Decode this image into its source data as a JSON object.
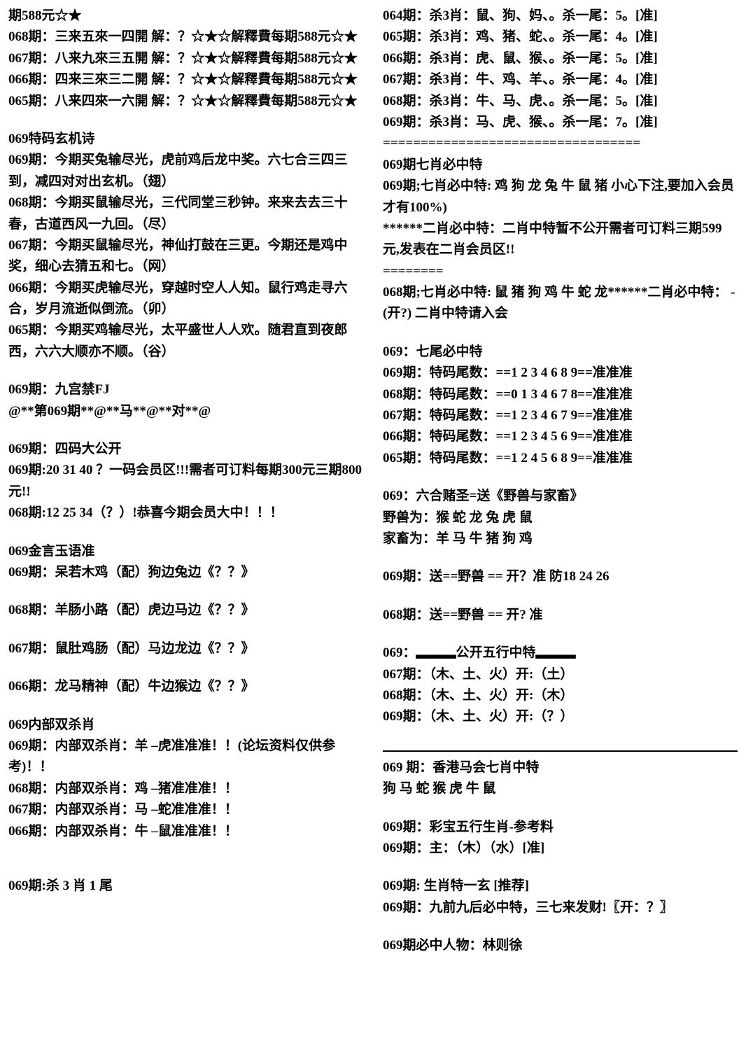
{
  "left": {
    "opening_lines": [
      "期588元☆★",
      "068期：三来五來一四開 解：？☆★☆解釋費每期588元☆★",
      "067期：八来九來三五開 解：？☆★☆解釋費每期588元☆★",
      "066期：四来三來三二開 解：？☆★☆解釋費每期588元☆★",
      "065期：八来四來一六開 解：？☆★☆解釋費每期588元☆★"
    ],
    "xuanji_title": "069特码玄机诗",
    "xuanji_lines": [
      "069期：今期买兔输尽光，虎前鸡后龙中奖。六七合三四三到，减四对对出玄机。（翅）",
      "068期：今期买鼠输尽光，三代同堂三秒钟。来来去去三十春，古道西风一九回。（尽）",
      "067期：今期买鼠输尽光，神仙打鼓在三更。今期还是鸡中奖，细心去猜五和七。（网）",
      "066期：今期买虎输尽光，穿越时空人人知。鼠行鸡走寻六合，岁月流逝似倒流。（卯）",
      "065期：今期买鸡输尽光，太平盛世人人欢。随君直到夜郎西，六六大顺亦不顺。（谷）"
    ],
    "jiugong_title": "069期：九宫禁FJ",
    "jiugong_line": "@**第069期**@**马**@**对**@",
    "sima_title": "069期：四码大公开",
    "sima_lines": [
      "069期:20 31 40 ？一码会员区!!!需者可订料每期300元三期800元!!",
      "068期:12 25 34（？）!恭喜今期会员大中！！！"
    ],
    "jinyan_title": "069金言玉语准",
    "jinyan_lines": [
      "069期：呆若木鸡（配）狗边兔边《？？》",
      "068期：羊肠小路（配）虎边马边《？？》",
      "067期：鼠肚鸡肠（配）马边龙边《？？》",
      "066期：龙马精神（配）牛边猴边《？？》"
    ],
    "shuangshax_title": "069内部双杀肖",
    "shuangshax_lines": [
      "069期：内部双杀肖：羊 –虎准准准！！(论坛资料仅供参考)！！",
      "068期：内部双杀肖：鸡 –猪准准准！！",
      "067期：内部双杀肖：马 –蛇准准准！！",
      "066期：内部双杀肖：牛 –鼠准准准！！"
    ],
    "sha3_title": "069期:杀 3 肖 1 尾"
  },
  "right": {
    "sha3_lines": [
      "064期：杀3肖：鼠、狗、妈、。杀一尾：5。[准]",
      "065期：杀3肖：鸡、猪、蛇、。杀一尾：4。[准]",
      "066期：杀3肖：虎、鼠、猴、。杀一尾：5。[准]",
      "067期：杀3肖：牛、鸡、羊、。杀一尾：4。[准]",
      "068期：杀3肖：牛、马、虎、。杀一尾：5。[准]",
      "069期：杀3肖：马、虎、猴、。杀一尾：7。[准]"
    ],
    "divider1": "==================================",
    "qixiao_title": "069期七肖必中特",
    "qixiao_lines": [
      "069期;七肖必中特: 鸡 狗 龙 兔 牛 鼠 猪  小心下注,要加入会员才有100%)",
      "******二肖必中特：二肖中特暂不公开需者可订料三期599元,发表在二肖会员区!!",
      "========",
      "068期;七肖必中特: 鼠 猪 狗 鸡 牛 蛇 龙******二肖必中特：  - (开?) 二肖中特请入会"
    ],
    "qiwei_title": "069：七尾必中特",
    "qiwei_lines": [
      "069期：特码尾数：==1 2 3 4 6 8 9==准准准",
      "068期：特码尾数：==0 1 3 4 6 7 8==准准准",
      "067期：特码尾数：==1 2 3 4 6 7 9==准准准",
      "066期：特码尾数：==1 2 3 4 5 6 9==准准准",
      "065期：特码尾数：==1 2 4 5 6 8 9==准准准"
    ],
    "dusheng_title": "069：六合赌圣=送《野兽与家畜》",
    "dusheng_lines": [
      "野兽为：猴 蛇 龙 兔 虎 鼠",
      "家畜为：羊 马 牛 猪 狗 鸡"
    ],
    "songye_lines": [
      "069期：送==野兽 == 开？准 防18 24 26",
      "068期：送==野兽 == 开? 准"
    ],
    "wuxing_title": "069：▂▂▂公开五行中特▂▂▂",
    "wuxing_lines": [
      "067期：（木、土、火）开:（土）",
      "068期：（木、土、火）开:（木）",
      "069期：（木、土、火）开:（？）"
    ],
    "hkmh_title": "069 期：香港马会七肖中特",
    "hkmh_line": " 狗 马 蛇 猴 虎 牛 鼠",
    "caibao_title": "069期：彩宝五行生肖-参考料",
    "caibao_line": "069期：主：（木）（水）[准]",
    "sxtyx_title": "069期: 生肖特一玄 [推荐]",
    "sxtyx_line": "069期：九前九后必中特，三七来发财!〖开：？〗",
    "bzrw_line": "069期必中人物：林则徐"
  }
}
